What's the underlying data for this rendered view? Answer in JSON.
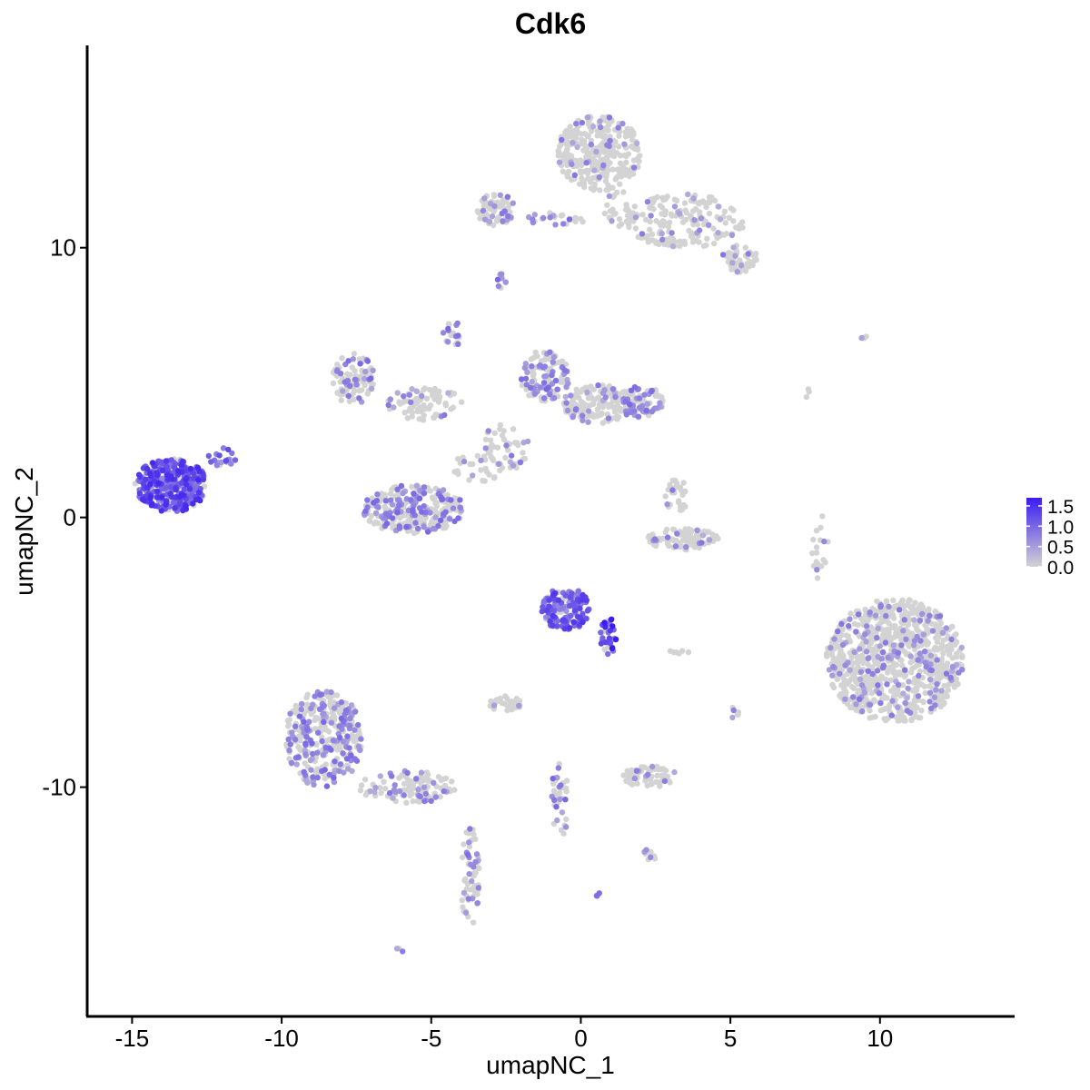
{
  "chart_data": {
    "type": "scatter",
    "title": "Cdk6",
    "xlabel": "umapNC_1",
    "ylabel": "umapNC_2",
    "xlim": [
      -16.5,
      14.5
    ],
    "ylim": [
      -18.5,
      17.5
    ],
    "x_ticks": [
      -15,
      -10,
      -5,
      0,
      5,
      10
    ],
    "x_tick_labels": [
      "-15",
      "-10",
      "-5",
      "0",
      "5",
      "10"
    ],
    "y_ticks": [
      -10,
      0,
      10
    ],
    "y_tick_labels": [
      "-10",
      "0",
      "10"
    ],
    "grid": false,
    "legend_position": "right",
    "colorbar": {
      "min": 0.0,
      "max": 1.7,
      "ticks": [
        0.0,
        0.5,
        1.0,
        1.5
      ],
      "tick_labels": [
        "0.0",
        "0.5",
        "1.0",
        "1.5"
      ],
      "low_color": "#d3d3d3",
      "high_color": "#3a1cf0"
    },
    "clusters": [
      {
        "cx": 0.6,
        "cy": 13.5,
        "rx": 1.4,
        "ry": 1.4,
        "n": 320,
        "frac": 0.12,
        "mean": 0.6
      },
      {
        "cx": 3.5,
        "cy": 11.0,
        "rx": 2.0,
        "ry": 1.0,
        "n": 180,
        "frac": 0.12,
        "mean": 0.6
      },
      {
        "cx": 5.3,
        "cy": 9.6,
        "rx": 0.6,
        "ry": 0.5,
        "n": 45,
        "frac": 0.15,
        "mean": 0.6
      },
      {
        "cx": -2.8,
        "cy": 11.4,
        "rx": 0.7,
        "ry": 0.6,
        "n": 70,
        "frac": 0.18,
        "mean": 0.6
      },
      {
        "cx": -0.9,
        "cy": 11.1,
        "rx": 1.2,
        "ry": 0.25,
        "n": 25,
        "frac": 0.4,
        "mean": 0.7
      },
      {
        "cx": 1.3,
        "cy": 11.4,
        "rx": 0.6,
        "ry": 0.8,
        "n": 30,
        "frac": 0.1,
        "mean": 0.6
      },
      {
        "cx": -13.7,
        "cy": 1.2,
        "rx": 1.2,
        "ry": 1.0,
        "n": 340,
        "frac": 0.92,
        "mean": 1.1
      },
      {
        "cx": -12.0,
        "cy": 2.2,
        "rx": 0.5,
        "ry": 0.4,
        "n": 18,
        "frac": 0.85,
        "mean": 0.9
      },
      {
        "cx": -7.6,
        "cy": 5.1,
        "rx": 0.7,
        "ry": 1.0,
        "n": 90,
        "frac": 0.3,
        "mean": 0.7
      },
      {
        "cx": -5.2,
        "cy": 4.2,
        "rx": 1.3,
        "ry": 0.6,
        "n": 80,
        "frac": 0.25,
        "mean": 0.6
      },
      {
        "cx": -5.6,
        "cy": 0.3,
        "rx": 1.7,
        "ry": 0.9,
        "n": 280,
        "frac": 0.45,
        "mean": 0.7
      },
      {
        "cx": -4.3,
        "cy": 6.8,
        "rx": 0.3,
        "ry": 0.6,
        "n": 18,
        "frac": 0.4,
        "mean": 0.7
      },
      {
        "cx": -1.2,
        "cy": 5.2,
        "rx": 0.8,
        "ry": 1.0,
        "n": 120,
        "frac": 0.35,
        "mean": 0.7
      },
      {
        "cx": 0.6,
        "cy": 4.2,
        "rx": 1.2,
        "ry": 0.7,
        "n": 160,
        "frac": 0.2,
        "mean": 0.6
      },
      {
        "cx": 2.0,
        "cy": 4.3,
        "rx": 0.8,
        "ry": 0.6,
        "n": 90,
        "frac": 0.35,
        "mean": 0.7
      },
      {
        "cx": -2.5,
        "cy": 2.6,
        "rx": 0.8,
        "ry": 0.9,
        "n": 45,
        "frac": 0.2,
        "mean": 0.6
      },
      {
        "cx": -3.5,
        "cy": 1.8,
        "rx": 0.8,
        "ry": 0.6,
        "n": 25,
        "frac": 0.1,
        "mean": 0.5
      },
      {
        "cx": 3.4,
        "cy": -0.8,
        "rx": 1.2,
        "ry": 0.4,
        "n": 110,
        "frac": 0.1,
        "mean": 0.6
      },
      {
        "cx": 3.2,
        "cy": 0.8,
        "rx": 0.4,
        "ry": 0.7,
        "n": 30,
        "frac": 0.3,
        "mean": 0.6
      },
      {
        "cx": 10.5,
        "cy": -5.3,
        "rx": 2.3,
        "ry": 2.3,
        "n": 900,
        "frac": 0.15,
        "mean": 0.6
      },
      {
        "cx": -0.5,
        "cy": -3.4,
        "rx": 0.8,
        "ry": 0.8,
        "n": 150,
        "frac": 0.8,
        "mean": 1.0
      },
      {
        "cx": 0.9,
        "cy": -4.4,
        "rx": 0.3,
        "ry": 0.7,
        "n": 35,
        "frac": 0.85,
        "mean": 1.3
      },
      {
        "cx": -8.6,
        "cy": -8.2,
        "rx": 1.3,
        "ry": 1.8,
        "n": 340,
        "frac": 0.35,
        "mean": 0.7
      },
      {
        "cx": -5.8,
        "cy": -10.0,
        "rx": 1.6,
        "ry": 0.6,
        "n": 110,
        "frac": 0.2,
        "mean": 0.6
      },
      {
        "cx": -3.7,
        "cy": -13.4,
        "rx": 0.3,
        "ry": 2.0,
        "n": 60,
        "frac": 0.35,
        "mean": 0.7
      },
      {
        "cx": 2.3,
        "cy": -9.6,
        "rx": 0.9,
        "ry": 0.4,
        "n": 60,
        "frac": 0.15,
        "mean": 0.6
      },
      {
        "cx": -2.5,
        "cy": -6.9,
        "rx": 0.6,
        "ry": 0.3,
        "n": 35,
        "frac": 0.1,
        "mean": 0.6
      },
      {
        "cx": -0.7,
        "cy": -10.5,
        "rx": 0.3,
        "ry": 1.5,
        "n": 35,
        "frac": 0.45,
        "mean": 0.7
      },
      {
        "cx": 2.3,
        "cy": -12.5,
        "rx": 0.3,
        "ry": 0.2,
        "n": 12,
        "frac": 0.2,
        "mean": 0.6
      },
      {
        "cx": 8.0,
        "cy": -1.0,
        "rx": 0.3,
        "ry": 1.5,
        "n": 18,
        "frac": 0.15,
        "mean": 0.6
      },
      {
        "cx": 7.6,
        "cy": 4.6,
        "rx": 0.1,
        "ry": 0.2,
        "n": 3,
        "frac": 0.0,
        "mean": 0.5
      },
      {
        "cx": 9.5,
        "cy": 6.7,
        "rx": 0.2,
        "ry": 0.1,
        "n": 4,
        "frac": 0.4,
        "mean": 0.6
      },
      {
        "cx": -2.7,
        "cy": 8.8,
        "rx": 0.2,
        "ry": 0.3,
        "n": 7,
        "frac": 0.6,
        "mean": 0.7
      },
      {
        "cx": 3.3,
        "cy": -5.0,
        "rx": 0.4,
        "ry": 0.1,
        "n": 6,
        "frac": 0.0,
        "mean": 0.5
      },
      {
        "cx": 5.1,
        "cy": -7.3,
        "rx": 0.2,
        "ry": 0.3,
        "n": 6,
        "frac": 0.2,
        "mean": 0.6
      },
      {
        "cx": 0.6,
        "cy": -14.0,
        "rx": 0.1,
        "ry": 0.1,
        "n": 3,
        "frac": 0.6,
        "mean": 0.7
      },
      {
        "cx": -6.0,
        "cy": -16.0,
        "rx": 0.15,
        "ry": 0.1,
        "n": 3,
        "frac": 0.6,
        "mean": 0.7
      }
    ]
  }
}
